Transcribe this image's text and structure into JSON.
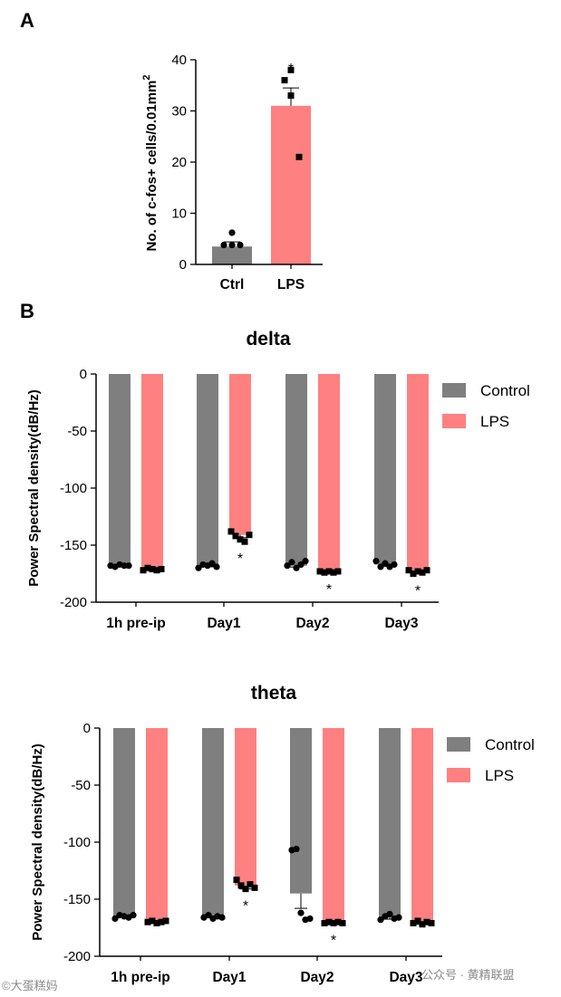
{
  "colors": {
    "control": "#7f7f7f",
    "lps": "#ff8080",
    "axis": "#000000",
    "point": "#000000"
  },
  "chart_data": [
    {
      "id": "A",
      "panel_label": "A",
      "type": "bar",
      "title": "",
      "ylabel": "No. of c-fos+ cells/0.01mm",
      "ylabel_sup": "2",
      "ylim": [
        0,
        40
      ],
      "yticks": [
        0,
        10,
        20,
        30,
        40
      ],
      "categories": [
        "Ctrl",
        "LPS"
      ],
      "values": [
        3.5,
        31
      ],
      "errors": [
        0.9,
        3.5
      ],
      "bar_colors": [
        "control",
        "lps"
      ],
      "points": [
        [
          6.2,
          3.8,
          3.8,
          3.8
        ],
        [
          38,
          36,
          33,
          21
        ]
      ],
      "markers": [
        "circle",
        "square"
      ],
      "significance": [
        "",
        "*"
      ]
    },
    {
      "id": "delta",
      "panel_label": "B",
      "type": "bar",
      "title": "delta",
      "ylabel": "Power Spectral density(dB/Hz)",
      "ylim": [
        -200,
        0
      ],
      "yticks": [
        0,
        -50,
        -100,
        -150,
        -200
      ],
      "categories": [
        "1h pre-ip",
        "Day1",
        "Day2",
        "Day3"
      ],
      "legend": [
        "Control",
        "LPS"
      ],
      "series": [
        {
          "name": "Control",
          "values": [
            -168,
            -168,
            -168,
            -167
          ],
          "errors": [
            1,
            1,
            1.2,
            1.5
          ],
          "points": [
            [
              -168,
              -169,
              -167,
              -168,
              -168
            ],
            [
              -170,
              -167,
              -168,
              -166,
              -169
            ],
            [
              -168,
              -165,
              -170,
              -167,
              -164
            ],
            [
              -164,
              -169,
              -166,
              -169,
              -167
            ]
          ]
        },
        {
          "name": "LPS",
          "values": [
            -171,
            -141,
            -173,
            -173
          ],
          "errors": [
            0.8,
            2.5,
            0.5,
            0.8
          ],
          "points": [
            [
              -172,
              -170,
              -171,
              -172,
              -171
            ],
            [
              -138,
              -142,
              -145,
              -147,
              -141
            ],
            [
              -173,
              -174,
              -173,
              -174,
              -173
            ],
            [
              -172,
              -175,
              -173,
              -174,
              -172
            ]
          ],
          "significance": [
            "",
            "*",
            "*",
            "*"
          ]
        }
      ]
    },
    {
      "id": "theta",
      "panel_label": "",
      "type": "bar",
      "title": "theta",
      "ylabel": "Power Spectral density(dB/Hz)",
      "ylim": [
        -200,
        0
      ],
      "yticks": [
        0,
        -50,
        -100,
        -150,
        -200
      ],
      "categories": [
        "1h pre-ip",
        "Day1",
        "Day2",
        "Day3"
      ],
      "legend": [
        "Control",
        "LPS"
      ],
      "series": [
        {
          "name": "Control",
          "values": [
            -165,
            -165,
            -145,
            -166
          ],
          "errors": [
            1,
            1,
            13,
            1.5
          ],
          "points": [
            [
              -167,
              -164,
              -165,
              -166,
              -164
            ],
            [
              -166,
              -164,
              -167,
              -165,
              -166
            ],
            [
              -107,
              -106,
              -162,
              -168,
              -167
            ],
            [
              -168,
              -165,
              -163,
              -167,
              -166
            ]
          ]
        },
        {
          "name": "LPS",
          "values": [
            -170,
            -138,
            -171,
            -171
          ],
          "errors": [
            0.5,
            3,
            0.5,
            1
          ],
          "points": [
            [
              -170,
              -169,
              -171,
              -170,
              -169
            ],
            [
              -133,
              -138,
              -141,
              -137,
              -140
            ],
            [
              -171,
              -170,
              -171,
              -170,
              -171
            ],
            [
              -171,
              -169,
              -172,
              -170,
              -171
            ]
          ],
          "significance": [
            "",
            "*",
            "*",
            ""
          ]
        }
      ]
    }
  ],
  "watermark": {
    "left": "©大蛋糕妈",
    "right": "公众号 · 黄精联盟"
  }
}
